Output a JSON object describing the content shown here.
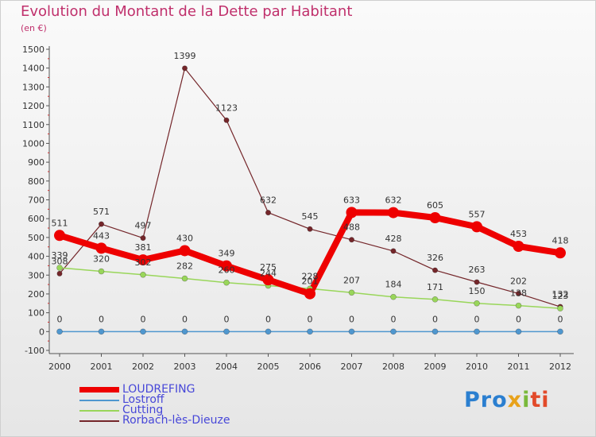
{
  "chart_data": {
    "type": "line",
    "title": "Evolution du Montant de la Dette par Habitant",
    "subtitle": "(en €)",
    "x": [
      "2000",
      "2001",
      "2002",
      "2003",
      "2004",
      "2005",
      "2006",
      "2007",
      "2008",
      "2009",
      "2010",
      "2011",
      "2012"
    ],
    "ylim": [
      -100,
      1500
    ],
    "yticks": [
      -100,
      0,
      100,
      200,
      300,
      400,
      500,
      600,
      700,
      800,
      900,
      1000,
      1100,
      1200,
      1300,
      1400,
      1500
    ],
    "grid": false,
    "legend_position": "bottom-left",
    "series": [
      {
        "name": "LOUDREFING",
        "color": "#ee0000",
        "values": [
          511,
          443,
          381,
          430,
          349,
          275,
          201,
          633,
          632,
          605,
          557,
          453,
          418
        ]
      },
      {
        "name": "Lostroff",
        "color": "#4f97cf",
        "values": [
          0,
          0,
          0,
          0,
          0,
          0,
          0,
          0,
          0,
          0,
          0,
          0,
          0
        ]
      },
      {
        "name": "Cutting",
        "color": "#99d65a",
        "values": [
          339,
          320,
          302,
          282,
          260,
          244,
          228,
          207,
          184,
          171,
          150,
          138,
          123
        ]
      },
      {
        "name": "Rorbach-lès-Dieuze",
        "color": "#74262a",
        "values": [
          308,
          571,
          497,
          1399,
          1123,
          632,
          545,
          488,
          428,
          326,
          263,
          202,
          132
        ]
      }
    ]
  },
  "logo": {
    "p1": "Pro",
    "p2": "x",
    "p3": "i",
    "p4": "ti"
  }
}
